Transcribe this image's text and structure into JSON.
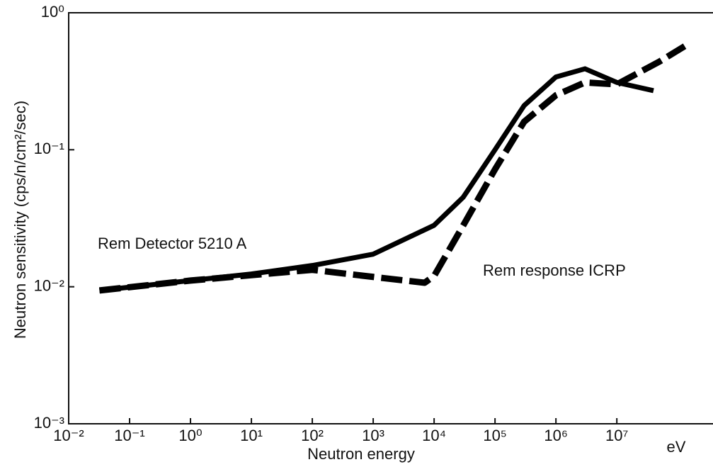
{
  "chart_data": {
    "type": "line",
    "x_label": "Neutron energy",
    "x_unit": "eV",
    "y_label": "Neutron sensitivity (cps/n/cm²/sec)",
    "log_x": true,
    "log_y": true,
    "grid": false,
    "xlim": [
      0.01,
      350000000
    ],
    "ylim": [
      0.001,
      1
    ],
    "xticks": [
      {
        "value": 0.01,
        "label": "10⁻²"
      },
      {
        "value": 0.1,
        "label": "10⁻¹"
      },
      {
        "value": 1,
        "label": "10⁰"
      },
      {
        "value": 10,
        "label": "10¹"
      },
      {
        "value": 100,
        "label": "10²"
      },
      {
        "value": 1000,
        "label": "10³"
      },
      {
        "value": 10000,
        "label": "10⁴"
      },
      {
        "value": 100000,
        "label": "10⁵"
      },
      {
        "value": 1000000,
        "label": "10⁶"
      },
      {
        "value": 10000000,
        "label": "10⁷"
      }
    ],
    "yticks": [
      {
        "value": 0.001,
        "label": "10⁻³"
      },
      {
        "value": 0.01,
        "label": "10⁻²"
      },
      {
        "value": 0.1,
        "label": "10⁻¹"
      },
      {
        "value": 1,
        "label": "10⁰"
      }
    ],
    "series": [
      {
        "name": "Rem Detector 5210 A",
        "color": "#000000",
        "style": "solid",
        "x": [
          0.032,
          1,
          10,
          100,
          1000,
          10000,
          30000,
          100000,
          300000,
          1000000,
          3000000,
          10000000,
          40000000
        ],
        "values": [
          0.0094,
          0.0111,
          0.0124,
          0.0143,
          0.0173,
          0.0281,
          0.045,
          0.1,
          0.21,
          0.34,
          0.39,
          0.31,
          0.27
        ]
      },
      {
        "name": "Rem response ICRP",
        "color": "#000000",
        "style": "dashed",
        "x": [
          0.032,
          1,
          100,
          1000,
          7000,
          10000,
          30000,
          100000,
          300000,
          1000000,
          3000000,
          10000000,
          50000000,
          130000000
        ],
        "values": [
          0.0094,
          0.0111,
          0.0133,
          0.0118,
          0.0107,
          0.012,
          0.028,
          0.072,
          0.16,
          0.25,
          0.31,
          0.3,
          0.44,
          0.57
        ]
      }
    ]
  }
}
